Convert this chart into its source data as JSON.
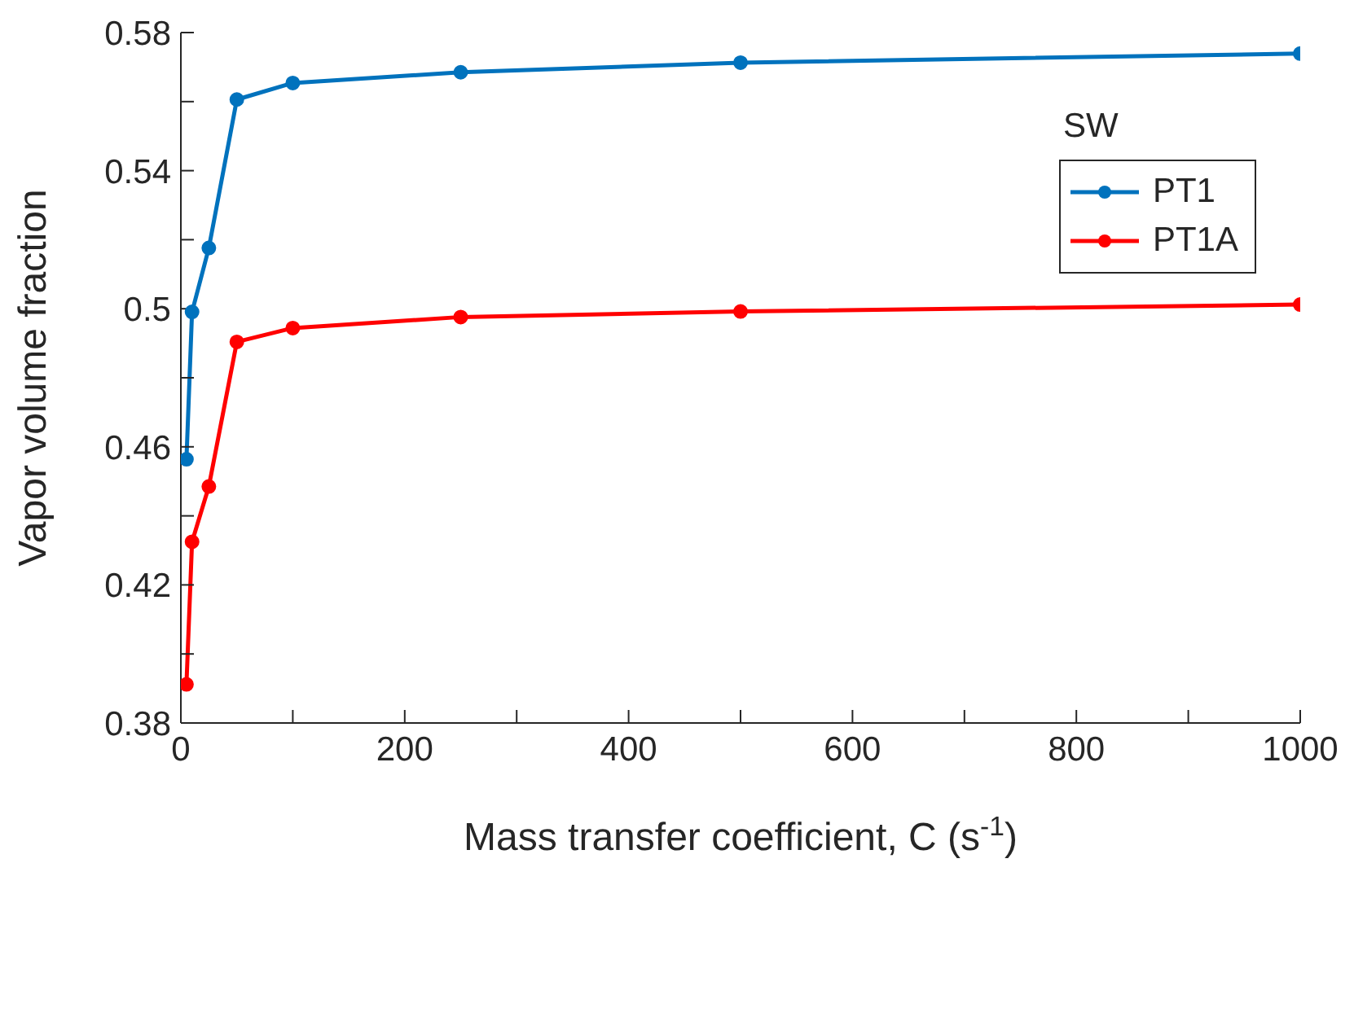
{
  "chart_data": {
    "type": "line",
    "xlabel": "Mass transfer coefficient, C (s$^{-1}$)",
    "ylabel": "Vapor volume fraction",
    "legend_title": "SW",
    "x": [
      5,
      10,
      25,
      50,
      100,
      250,
      500,
      1000
    ],
    "series": [
      {
        "name": "PT1",
        "color": "#0072bd",
        "values": [
          0.4564,
          0.4991,
          0.5176,
          0.5606,
          0.5654,
          0.5685,
          0.5713,
          0.5739
        ]
      },
      {
        "name": "PT1A",
        "color": "#ff0000",
        "values": [
          0.3912,
          0.4325,
          0.4485,
          0.4904,
          0.4944,
          0.4976,
          0.4992,
          0.5012
        ]
      }
    ],
    "xlim": [
      0,
      1000
    ],
    "xticks": [
      0,
      {
        "value": 100,
        "label": null
      },
      200,
      {
        "value": 300,
        "label": null
      },
      400,
      {
        "value": 500,
        "label": null
      },
      600,
      {
        "value": 700,
        "label": null
      },
      800,
      {
        "value": 900,
        "label": null
      },
      1000
    ],
    "ylim": [
      0.38,
      0.58
    ],
    "yticks": [
      0.38,
      {
        "value": 0.4,
        "label": null
      },
      0.42,
      {
        "value": 0.44,
        "label": null
      },
      0.46,
      {
        "value": 0.48,
        "label": null
      },
      0.5,
      {
        "value": 0.52,
        "label": null
      },
      0.54,
      {
        "value": 0.56,
        "label": null
      },
      0.58
    ],
    "grid": false,
    "legend": "top right",
    "marker": "circle",
    "line_style": "solid"
  }
}
